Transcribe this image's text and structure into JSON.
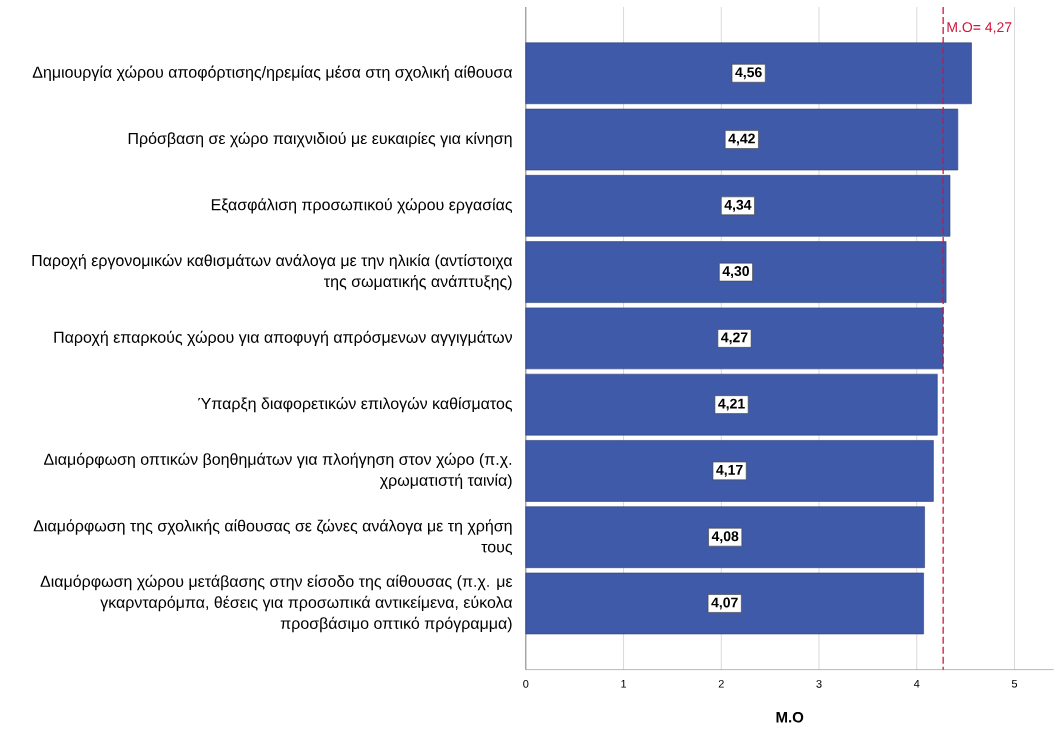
{
  "chart_data": {
    "type": "bar",
    "orientation": "horizontal",
    "categories": [
      "Δημιουργία χώρου αποφόρτισης/ηρεμίας μέσα στη σχολική αίθουσα",
      "Πρόσβαση σε χώρο παιχνιδιού με ευκαιρίες για κίνηση",
      "Εξασφάλιση προσωπικού χώρου εργασίας",
      "Παροχή εργονομικών καθισμάτων ανάλογα με την ηλικία (αντίστοιχα της σωματικής ανάπτυξης)",
      "Παροχή επαρκούς χώρου για αποφυγή απρόσμενων αγγιγμάτων",
      "Ύπαρξη διαφορετικών επιλογών καθίσματος",
      "Διαμόρφωση οπτικών βοηθημάτων για πλοήγηση στον χώρο (π.χ. χρωματιστή ταινία)",
      "Διαμόρφωση της σχολικής αίθουσας σε ζώνες ανάλογα με τη χρήση τους",
      "Διαμόρφωση χώρου μετάβασης στην είσοδο της αίθουσας (π.χ. με γκαρνταρόμπα, θέσεις για προσωπικά αντικείμενα, εύκολα προσβάσιμο οπτικό πρόγραμμα)"
    ],
    "values": [
      4.56,
      4.42,
      4.34,
      4.3,
      4.27,
      4.21,
      4.17,
      4.08,
      4.07
    ],
    "value_labels": [
      "4,56",
      "4,42",
      "4,34",
      "4,30",
      "4,27",
      "4,21",
      "4,17",
      "4,08",
      "4,07"
    ],
    "color": "#3f5aa8",
    "xlabel": "M.O",
    "xlim": [
      0,
      5.4
    ],
    "xticks": [
      0,
      1,
      2,
      3,
      4,
      5
    ],
    "grid": "x",
    "ref_lines": [
      {
        "axis": "x",
        "value": 4.27,
        "label": "M.O= 4,27",
        "color": "#d4143c",
        "line_style": "dashed"
      }
    ]
  }
}
